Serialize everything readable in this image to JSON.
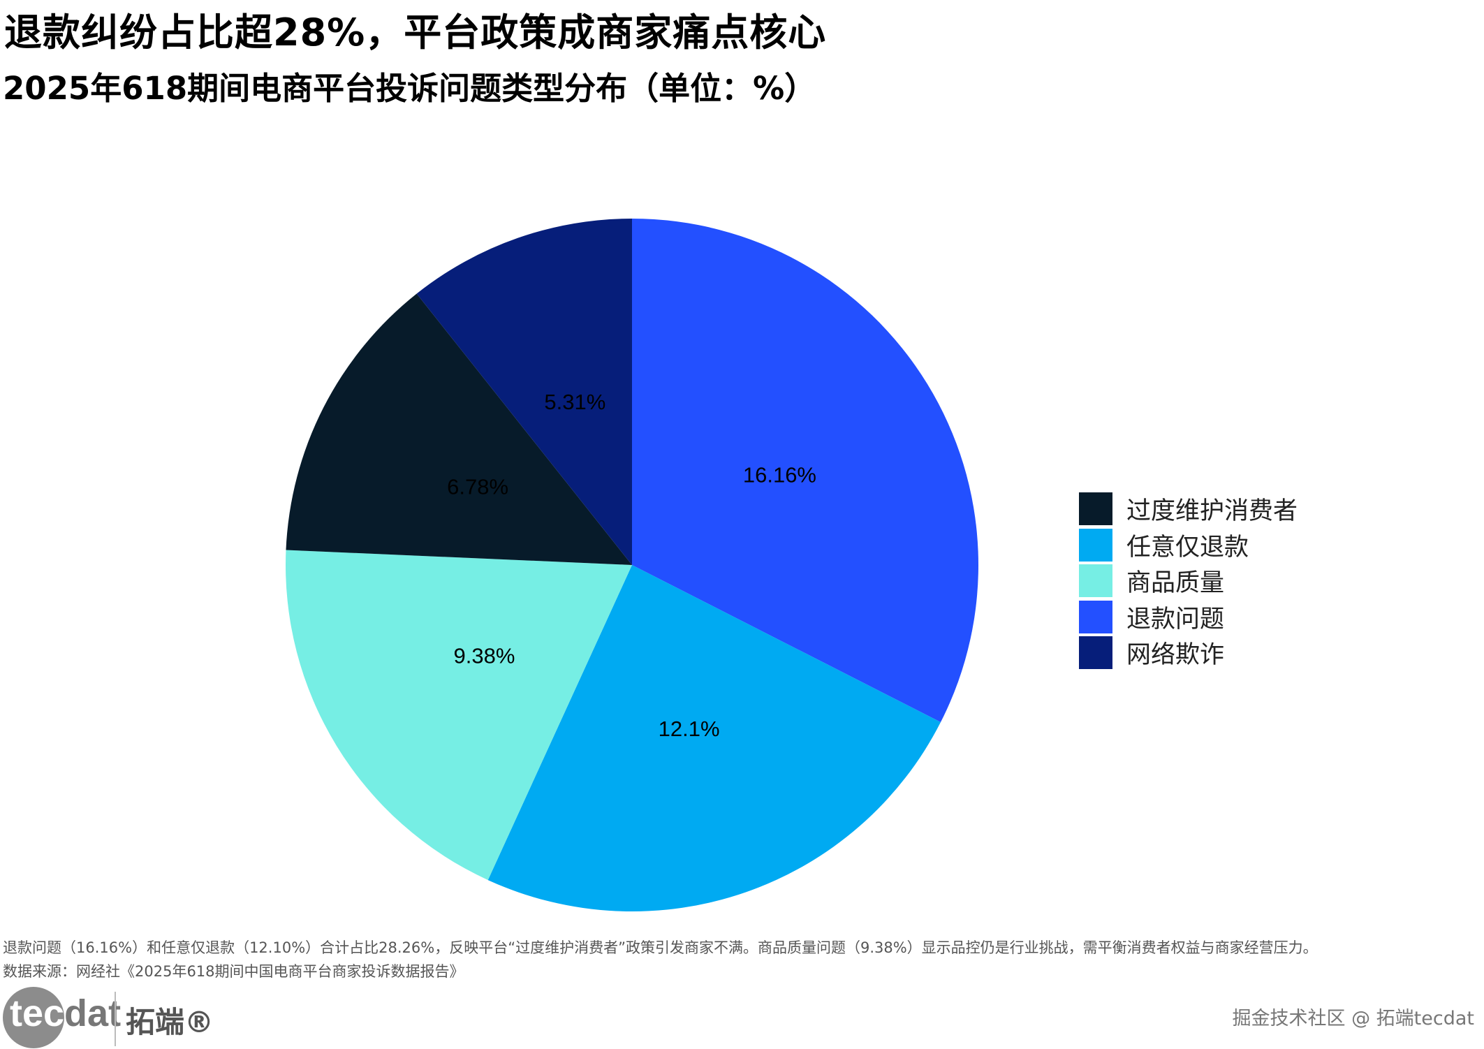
{
  "title": "退款纠纷占比超28%，平台政策成商家痛点核心",
  "subtitle": "2025年618期间电商平台投诉问题类型分布（单位：%）",
  "chart_data": {
    "type": "pie",
    "title": "退款纠纷占比超28%，平台政策成商家痛点核心",
    "subtitle": "2025年618期间电商平台投诉问题类型分布（单位：%）",
    "start": "top",
    "direction": "clockwise",
    "legend_position": "right",
    "slices": [
      {
        "name": "退款问题",
        "value": 16.16,
        "label": "16.16%",
        "color": "#2350FF"
      },
      {
        "name": "任意仅退款",
        "value": 12.1,
        "label": "12.1%",
        "color": "#00AAF2"
      },
      {
        "name": "商品质量",
        "value": 9.38,
        "label": "9.38%",
        "color": "#76EEE4"
      },
      {
        "name": "过度维护消费者",
        "value": 6.78,
        "label": "6.78%",
        "color": "#071B2A"
      },
      {
        "name": "网络欺诈",
        "value": 5.31,
        "label": "5.31%",
        "color": "#061E7A"
      }
    ],
    "legend": [
      {
        "name": "过度维护消费者",
        "color": "#071B2A"
      },
      {
        "name": "任意仅退款",
        "color": "#00AAF2"
      },
      {
        "name": "商品质量",
        "color": "#76EEE4"
      },
      {
        "name": "退款问题",
        "color": "#2350FF"
      },
      {
        "name": "网络欺诈",
        "color": "#061E7A"
      }
    ]
  },
  "notes": {
    "line1": "退款问题（16.16%）和任意仅退款（12.10%）合计占比28.26%，反映平台“过度维护消费者”政策引发商家不满。商品质量问题（9.38%）显示品控仍是行业挑战，需平衡消费者权益与商家经营压力。",
    "line2": "数据来源：网经社《2025年618期间中国电商平台商家投诉数据报告》"
  },
  "logo": {
    "text_a": "tec",
    "text_b": "dat",
    "cn": "拓端®"
  },
  "watermark": "掘金技术社区 @ 拓端tecdat"
}
